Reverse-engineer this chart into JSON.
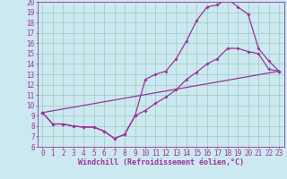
{
  "title": "",
  "xlabel": "Windchill (Refroidissement éolien,°C)",
  "bg_color": "#cce8f0",
  "line_color": "#993399",
  "grid_color": "#99ccbb",
  "xlim": [
    -0.5,
    23.5
  ],
  "ylim": [
    6,
    20
  ],
  "xticks": [
    0,
    1,
    2,
    3,
    4,
    5,
    6,
    7,
    8,
    9,
    10,
    11,
    12,
    13,
    14,
    15,
    16,
    17,
    18,
    19,
    20,
    21,
    22,
    23
  ],
  "yticks": [
    6,
    7,
    8,
    9,
    10,
    11,
    12,
    13,
    14,
    15,
    16,
    17,
    18,
    19,
    20
  ],
  "line1_x": [
    0,
    1,
    2,
    3,
    4,
    5,
    6,
    7,
    8,
    9,
    10,
    11,
    12,
    13,
    14,
    15,
    16,
    17,
    18,
    19,
    20,
    21,
    22,
    23
  ],
  "line1_y": [
    9.3,
    8.2,
    8.2,
    8.0,
    7.9,
    7.9,
    7.5,
    6.8,
    7.2,
    9.0,
    12.5,
    13.0,
    13.3,
    14.5,
    16.2,
    18.2,
    19.5,
    19.7,
    20.3,
    19.5,
    18.8,
    15.5,
    14.3,
    13.3
  ],
  "line2_x": [
    0,
    1,
    2,
    3,
    4,
    5,
    6,
    7,
    8,
    9,
    10,
    11,
    12,
    13,
    14,
    15,
    16,
    17,
    18,
    19,
    20,
    21,
    22,
    23
  ],
  "line2_y": [
    9.3,
    8.2,
    8.2,
    8.0,
    7.9,
    7.9,
    7.5,
    6.8,
    7.2,
    9.0,
    9.5,
    10.2,
    10.8,
    11.5,
    12.5,
    13.2,
    14.0,
    14.5,
    15.5,
    15.5,
    15.2,
    15.0,
    13.5,
    13.3
  ],
  "line3_x": [
    0,
    23
  ],
  "line3_y": [
    9.3,
    13.3
  ],
  "marker": "D",
  "markersize": 2,
  "linewidth": 0.9,
  "xlabel_fontsize": 6,
  "tick_fontsize": 5.5
}
